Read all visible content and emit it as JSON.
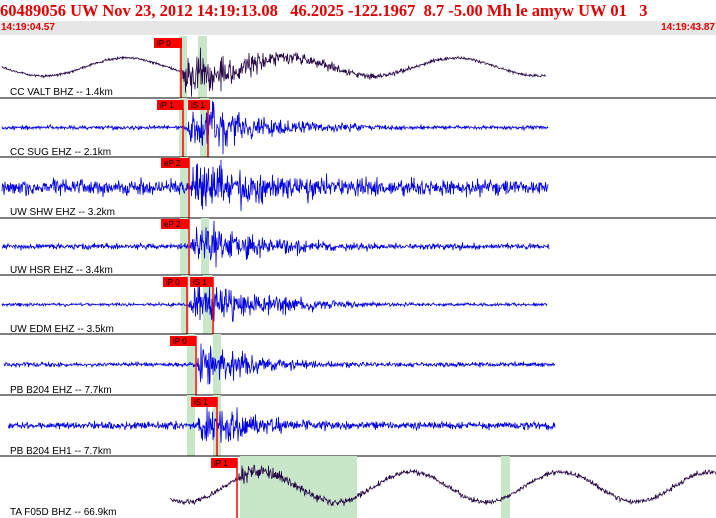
{
  "header": {
    "title": "60489056 UW Nov 23, 2012 14:19:13.08   46.2025 -122.1967  8.7 -5.00 Mh le amyw UW 01   3",
    "start_time": "14:19:04.57",
    "end_time": "14:19:43.87"
  },
  "colors": {
    "title": "#e00000",
    "pick": "#ff0000",
    "window": "#c8e6c8",
    "trace_broadband": "#2a0a4a",
    "trace_short_period": "#0000e0",
    "separator": "#000000"
  },
  "traces": [
    {
      "label": "CC VALT BHZ -- 1.4km",
      "color": "broadband",
      "picks": [
        "iP 0"
      ]
    },
    {
      "label": "CC SUG EHZ -- 2.1km",
      "color": "short",
      "picks": [
        "iP 1",
        "iS 1"
      ]
    },
    {
      "label": "UW SHW EHZ -- 3.2km",
      "color": "short",
      "picks": [
        "eP 2"
      ]
    },
    {
      "label": "UW HSR EHZ -- 3.4km",
      "color": "short",
      "picks": [
        "eP 2"
      ]
    },
    {
      "label": "UW EDM EHZ -- 3.5km",
      "color": "short",
      "picks": [
        "iP 0",
        "iS 1"
      ]
    },
    {
      "label": "PB B204 EHZ -- 7.7km",
      "color": "short",
      "picks": [
        "iP 0"
      ]
    },
    {
      "label": "PB B204 EH1 -- 7.7km",
      "color": "short",
      "picks": [
        "iS 1"
      ]
    },
    {
      "label": "TA F05D BHZ -- 66.9km",
      "color": "broadband",
      "picks": [
        "iP 1"
      ]
    }
  ]
}
